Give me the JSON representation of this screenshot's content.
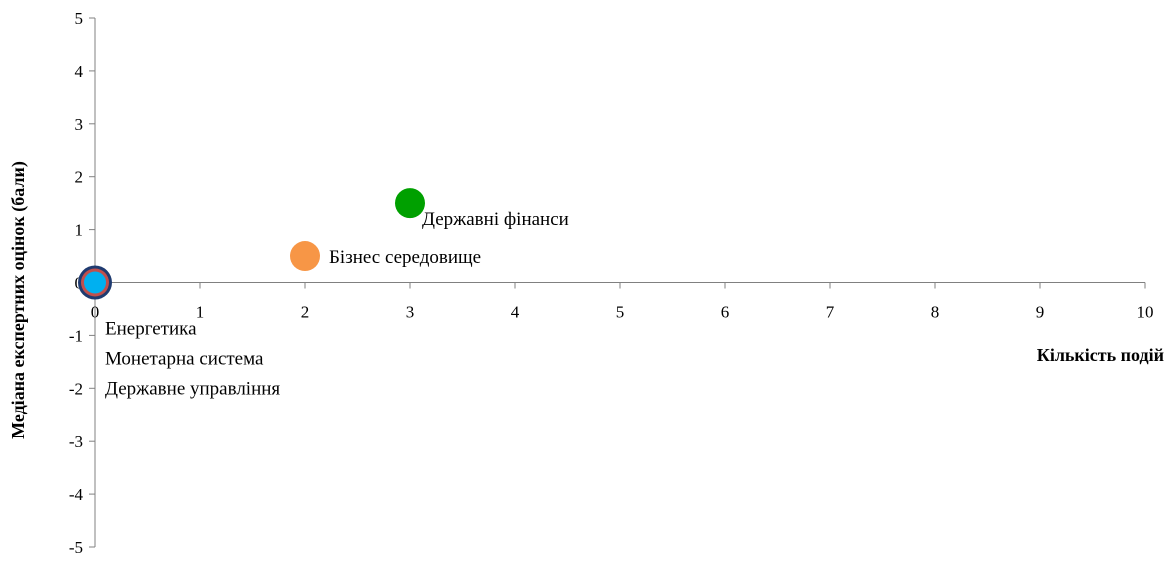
{
  "chart_data": {
    "type": "scatter",
    "title": "",
    "xlabel": "Кількість подій",
    "ylabel": "Медіана експертних оцінок (бали)",
    "xlim": [
      0,
      10
    ],
    "ylim": [
      -5,
      5
    ],
    "x_ticks": [
      "0",
      "1",
      "2",
      "3",
      "4",
      "5",
      "6",
      "7",
      "8",
      "9",
      "10"
    ],
    "y_ticks": [
      "5",
      "4",
      "3",
      "2",
      "1",
      "0",
      "-1",
      "-2",
      "-3",
      "-4",
      "-5"
    ],
    "grid": false,
    "legend": "none",
    "points": [
      {
        "x": 0,
        "y": 0,
        "color": "#1f3b70",
        "labels": []
      },
      {
        "x": 0,
        "y": 0,
        "color": "#c0504d",
        "labels": []
      },
      {
        "x": 0,
        "y": 0,
        "color": "#00b0f0",
        "labels": [
          "Енергетика",
          "Монетарна система",
          "Державне управління"
        ]
      },
      {
        "x": 2,
        "y": 0.5,
        "color": "#f79646",
        "labels": [
          "Бізнес середовище"
        ]
      },
      {
        "x": 3,
        "y": 1.5,
        "color": "#00a000",
        "labels": [
          "Державні фінанси"
        ]
      }
    ]
  }
}
